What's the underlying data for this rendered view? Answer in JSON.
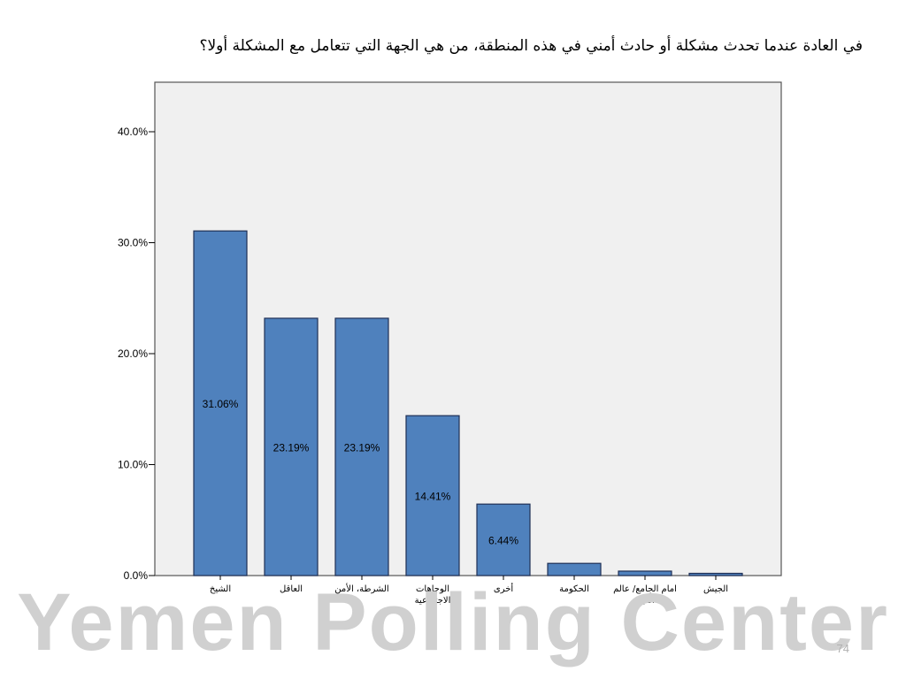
{
  "slide": {
    "watermark": "Yemen Polling Center",
    "page_number": "74"
  },
  "colors": {
    "bar_fill": "#4f81bd",
    "bar_stroke": "#1f2f55",
    "plot_background": "#f0f0f0",
    "frame": "#555555",
    "watermark": "#d0d0d0"
  },
  "chart_data": {
    "type": "bar",
    "title": "في العادة عندما تحدث مشكلة أو حادث أمني في هذه المنطقة، من هي الجهة التي تتعامل مع المشكلة أولا؟",
    "categories": [
      "الشيخ",
      "العاقل",
      "الشرطة، الأمن",
      "الوجاهات الاجتماعية",
      "أخرى",
      "الحكومة",
      "امام الجامع/ عالم الدين",
      "الجيش"
    ],
    "values": [
      31.06,
      23.19,
      23.19,
      14.41,
      6.44,
      1.1,
      0.4,
      0.2
    ],
    "data_labels": [
      "31.06%",
      "23.19%",
      "23.19%",
      "14.41%",
      "6.44%",
      "",
      "",
      ""
    ],
    "ylim": [
      0,
      40
    ],
    "yticks": [
      0,
      10,
      20,
      30,
      40
    ],
    "ytick_labels": [
      "0.0%",
      "10.0%",
      "20.0%",
      "30.0%",
      "40.0%"
    ],
    "xlabel": "",
    "ylabel": "",
    "grid": false,
    "legend": "none"
  }
}
